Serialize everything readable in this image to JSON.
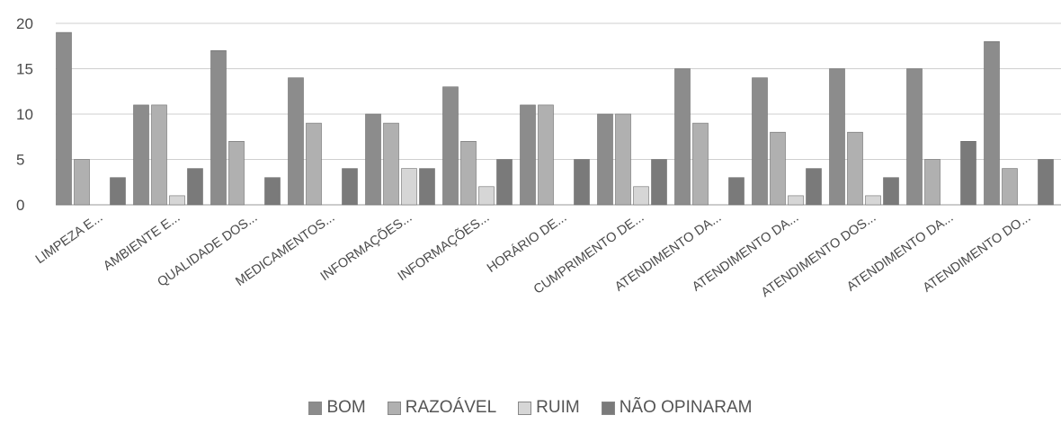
{
  "chart_data": {
    "type": "bar",
    "categories": [
      "LIMPEZA E...",
      "AMBIENTE E...",
      "QUALIDADE DOS...",
      "MEDICAMENTOS...",
      "INFORMAÇÕES...",
      "INFORMAÇÕES...",
      "HORÁRIO DE...",
      "CUMPRIMENTO DE...",
      "ATENDIMENTO DA...",
      "ATENDIMENTO DA...",
      "ATENDIMENTO DOS...",
      "ATENDIMENTO DA...",
      "ATENDIMENTO DO..."
    ],
    "series": [
      {
        "name": "BOM",
        "values": [
          19,
          11,
          17,
          14,
          10,
          13,
          11,
          10,
          15,
          14,
          15,
          15,
          18
        ],
        "color": "#8c8c8c"
      },
      {
        "name": "RAZOÁVEL",
        "values": [
          5,
          11,
          7,
          9,
          9,
          7,
          11,
          10,
          9,
          8,
          8,
          5,
          4
        ],
        "color": "#b0b0b0"
      },
      {
        "name": "RUIM",
        "values": [
          0,
          1,
          0,
          0,
          4,
          2,
          0,
          2,
          0,
          1,
          1,
          0,
          0
        ],
        "color": "#d6d6d6"
      },
      {
        "name": "NÃO OPINARAM",
        "values": [
          3,
          4,
          3,
          4,
          4,
          5,
          5,
          5,
          3,
          4,
          3,
          7,
          5
        ],
        "color": "#7a7a7a"
      }
    ],
    "y_ticks": [
      "0",
      "5",
      "10",
      "15",
      "20"
    ],
    "ylim": [
      0,
      20
    ],
    "grid": true,
    "legend_position": "bottom"
  }
}
